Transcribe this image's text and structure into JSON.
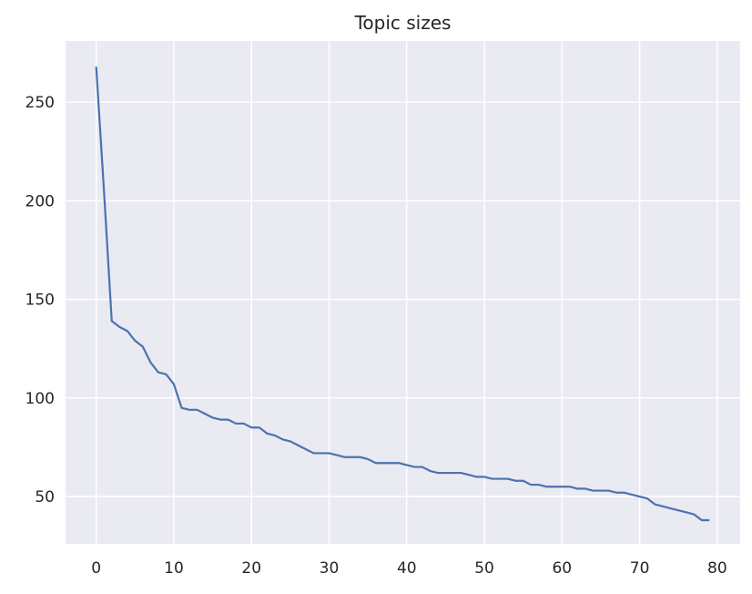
{
  "chart_data": {
    "type": "line",
    "title": "Topic sizes",
    "xlabel": "",
    "ylabel": "",
    "xlim": [
      -3.95,
      82.95
    ],
    "ylim": [
      26,
      281
    ],
    "xticks": [
      0,
      10,
      20,
      30,
      40,
      50,
      60,
      70,
      80
    ],
    "yticks": [
      50,
      100,
      150,
      200,
      250
    ],
    "grid": true,
    "colors": {
      "background": "#eaeaf2",
      "grid": "#ffffff",
      "line": "#4c72b0"
    },
    "series": [
      {
        "name": "",
        "x": [
          0,
          1,
          2,
          3,
          4,
          5,
          6,
          7,
          8,
          9,
          10,
          11,
          12,
          13,
          14,
          15,
          16,
          17,
          18,
          19,
          20,
          21,
          22,
          23,
          24,
          25,
          26,
          27,
          28,
          29,
          30,
          31,
          32,
          33,
          34,
          35,
          36,
          37,
          38,
          39,
          40,
          41,
          42,
          43,
          44,
          45,
          46,
          47,
          48,
          49,
          50,
          51,
          52,
          53,
          54,
          55,
          56,
          57,
          58,
          59,
          60,
          61,
          62,
          63,
          64,
          65,
          66,
          67,
          68,
          69,
          70,
          71,
          72,
          73,
          74,
          75,
          76,
          77,
          78,
          79
        ],
        "values": [
          268,
          205,
          139,
          136,
          134,
          129,
          126,
          118,
          113,
          112,
          107,
          95,
          94,
          94,
          92,
          90,
          89,
          89,
          87,
          87,
          85,
          85,
          82,
          81,
          79,
          78,
          76,
          74,
          72,
          72,
          72,
          71,
          70,
          70,
          70,
          69,
          67,
          67,
          67,
          67,
          66,
          65,
          65,
          63,
          62,
          62,
          62,
          62,
          61,
          60,
          60,
          59,
          59,
          59,
          58,
          58,
          56,
          56,
          55,
          55,
          55,
          55,
          54,
          54,
          53,
          53,
          53,
          52,
          52,
          51,
          50,
          49,
          46,
          45,
          44,
          43,
          42,
          41,
          38,
          38
        ]
      }
    ]
  }
}
